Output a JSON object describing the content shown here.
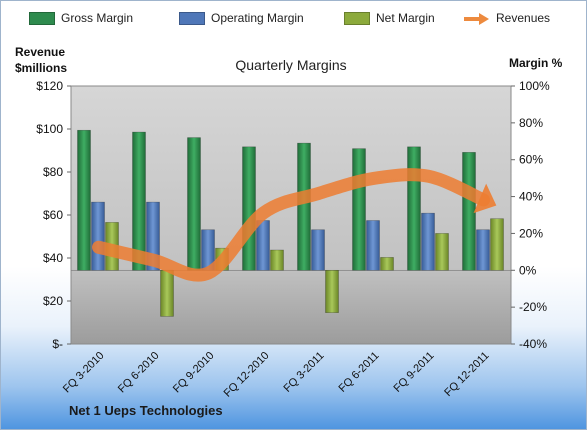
{
  "chart_data": {
    "type": "bar",
    "title": "Quarterly Margins",
    "footer": "Net 1 Ueps Technologies",
    "left_axis_label_line1": "Revenue",
    "left_axis_label_line2": "$millions",
    "right_axis_label": "Margin %",
    "categories": [
      "FQ 3-2010",
      "FQ 6-2010",
      "FQ 9-2010",
      "FQ 12-2010",
      "FQ 3-2011",
      "FQ 6-2011",
      "FQ 9-2011",
      "FQ 12-2011"
    ],
    "left_ticks": [
      "$-",
      "$20",
      "$40",
      "$60",
      "$80",
      "$100",
      "$120"
    ],
    "right_ticks": [
      "-40%",
      "-20%",
      "0%",
      "20%",
      "40%",
      "60%",
      "80%",
      "100%"
    ],
    "ylim_left": [
      0,
      120
    ],
    "ylim_right": [
      -40,
      100
    ],
    "series": [
      {
        "name": "Gross Margin",
        "axis": "right",
        "color": "#2e8b4e",
        "values": [
          76,
          75,
          72,
          67,
          69,
          66,
          67,
          64
        ]
      },
      {
        "name": "Operating Margin",
        "axis": "right",
        "color": "#4f77b8",
        "values": [
          37,
          37,
          22,
          27,
          22,
          27,
          31,
          22
        ]
      },
      {
        "name": "Net Margin",
        "axis": "right",
        "color": "#8caa3c",
        "values": [
          26,
          -25,
          12,
          11,
          -23,
          7,
          20,
          28
        ]
      },
      {
        "name": "Revenues",
        "axis": "left",
        "type": "line",
        "color": "#ed7d31",
        "values": [
          45,
          39,
          33,
          61,
          70,
          77,
          78,
          67
        ]
      }
    ]
  }
}
